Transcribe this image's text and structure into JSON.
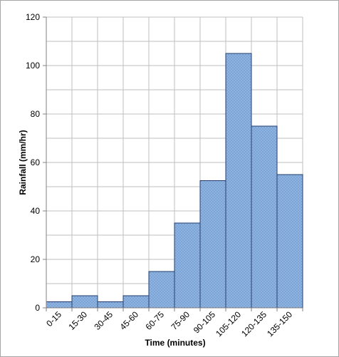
{
  "chart_data": {
    "type": "bar",
    "title": "",
    "xlabel": "Time (minutes)",
    "ylabel": "Rainfall (mm/hr)",
    "categories": [
      "0-15",
      "15-30",
      "30-45",
      "45-60",
      "60-75",
      "75-90",
      "90-105",
      "105-120",
      "120-135",
      "135-150"
    ],
    "values": [
      2.5,
      5,
      2.5,
      5,
      15,
      35,
      52.5,
      105,
      75,
      55
    ],
    "ylim": [
      0,
      120
    ],
    "yticks": [
      "0",
      "20",
      "40",
      "60",
      "80",
      "100",
      "120"
    ],
    "grid": true,
    "legend": "none",
    "colors": {
      "bar_fill": "#8DB3E2",
      "bar_stroke": "#1F3A6B",
      "bar_dots": "#5A7FB0",
      "grid": "#BFBFBF",
      "axis": "#808080",
      "frame": "#A6A6A6"
    }
  }
}
